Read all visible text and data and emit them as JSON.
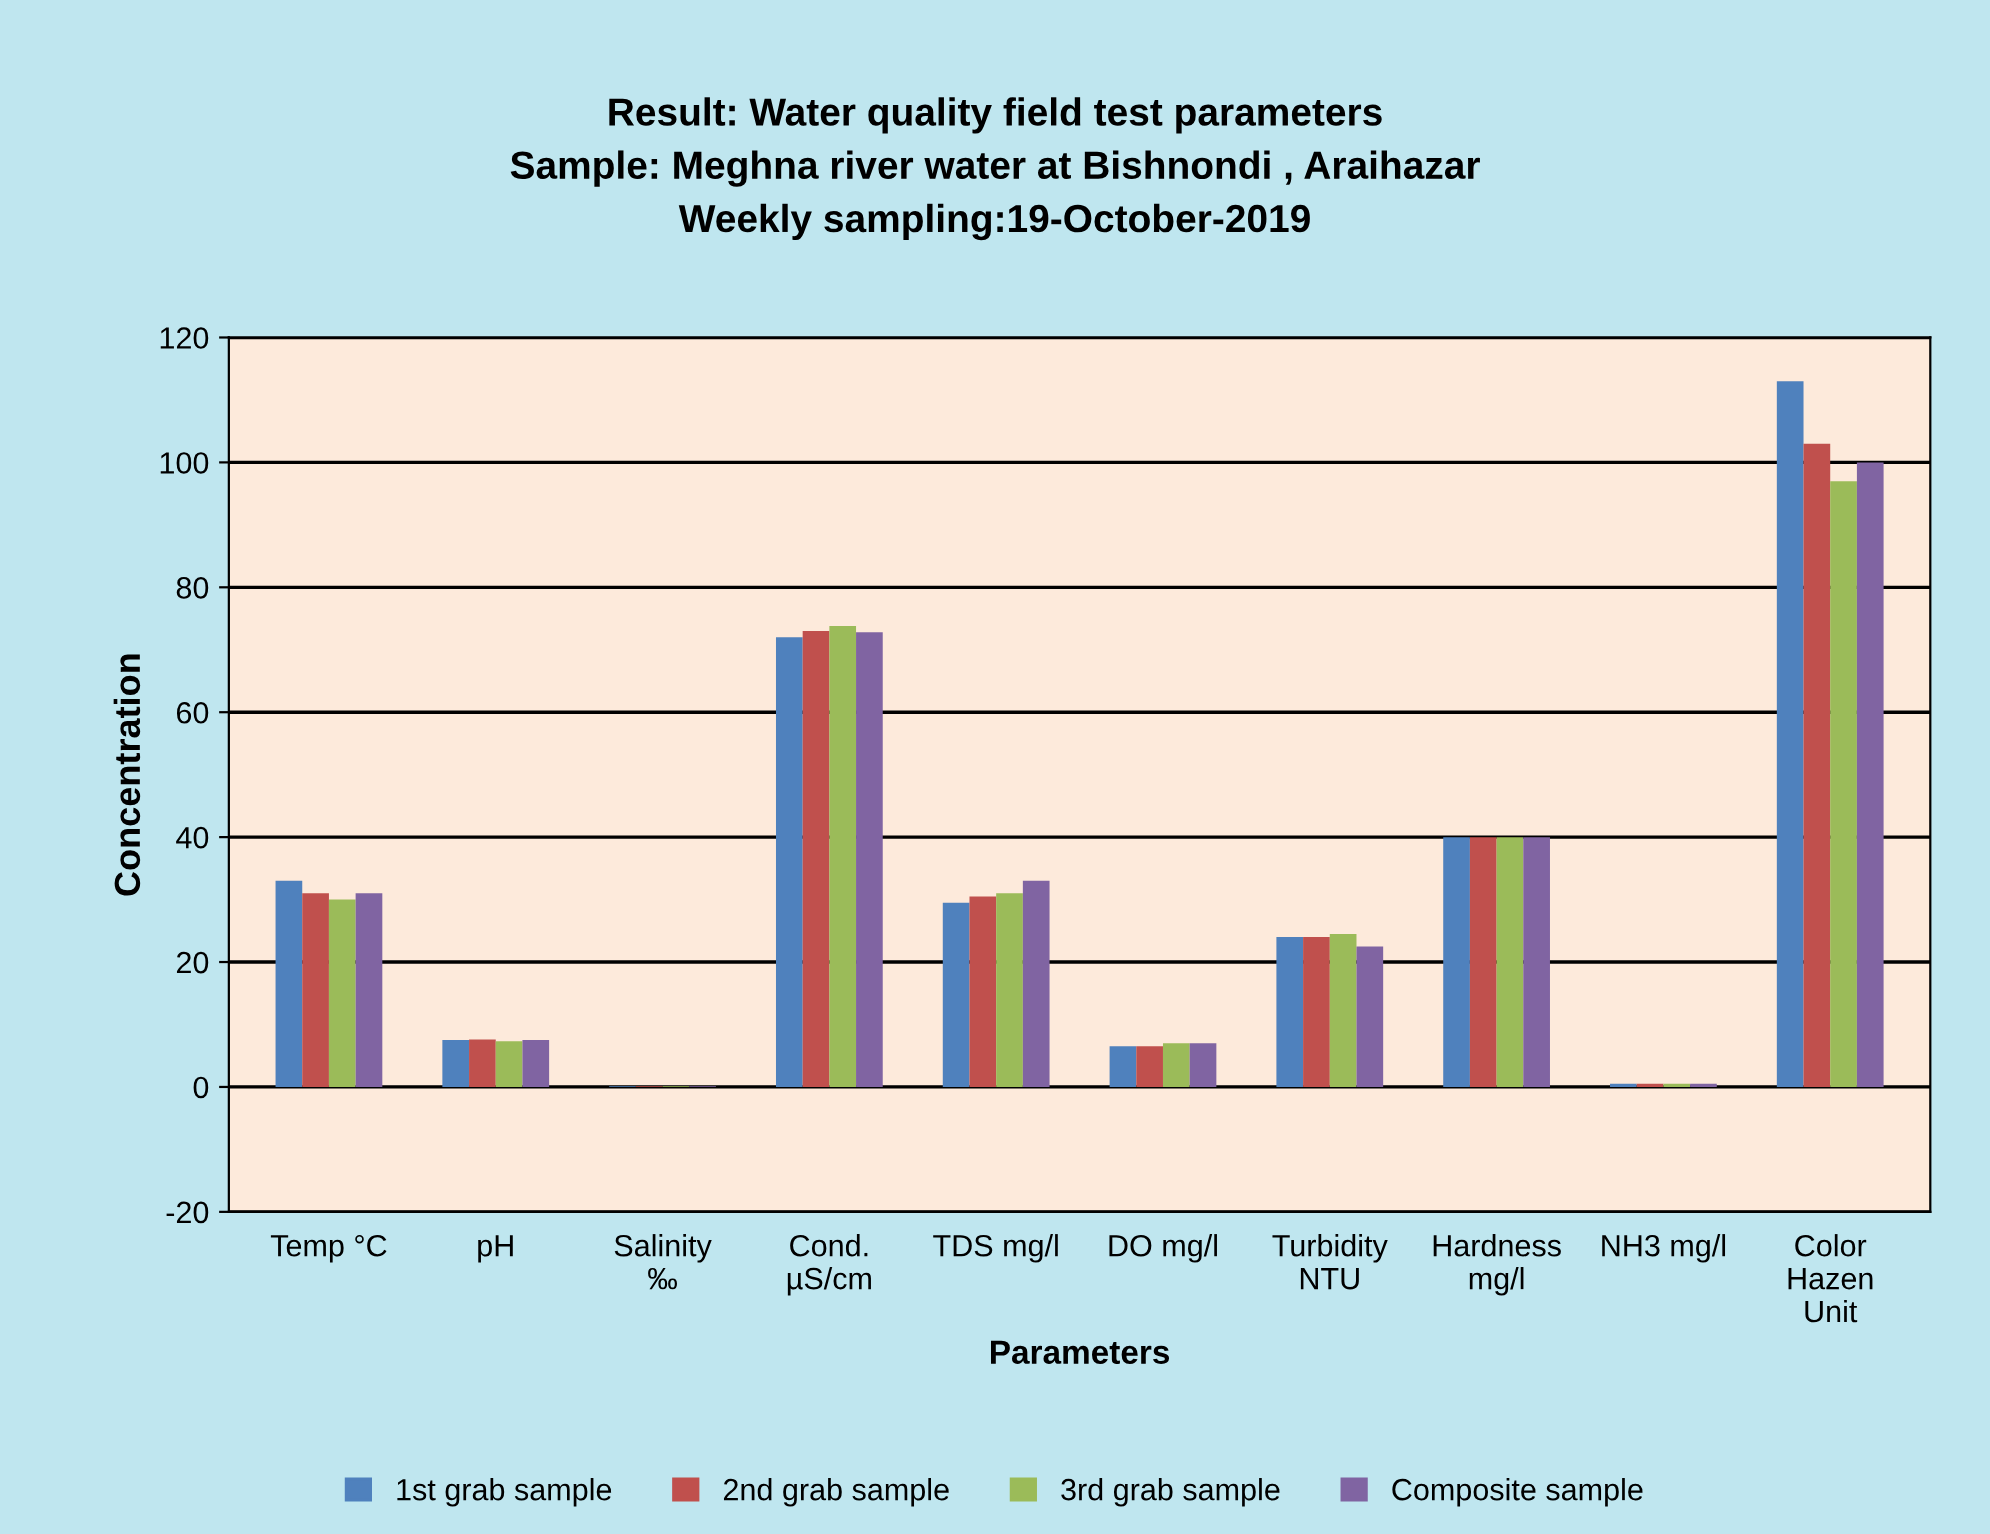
{
  "chart_data": {
    "type": "bar",
    "title": "Result: Water quality field test parameters\nSample: Meghna river water at Bishnondi , Araihazar\nWeekly sampling:19-October-2019",
    "xlabel": "Parameters",
    "ylabel": "Concentration",
    "categories": [
      "Temp °C",
      "pH",
      "Salinity\n‰",
      "Cond.\nµS/cm",
      "TDS mg/l",
      "DO mg/l",
      "Turbidity\nNTU",
      "Hardness\nmg/l",
      "NH3 mg/l",
      "Color\nHazen\nUnit"
    ],
    "series": [
      {
        "name": "1st grab sample",
        "color": "#4f81bd",
        "values": [
          33,
          7.5,
          0.1,
          72,
          29.5,
          6.5,
          24,
          40,
          0.5,
          113
        ]
      },
      {
        "name": "2nd grab sample",
        "color": "#c0504d",
        "values": [
          31,
          7.6,
          0.1,
          73,
          30.5,
          6.5,
          24,
          40,
          0.5,
          103
        ]
      },
      {
        "name": "3rd grab sample",
        "color": "#9bbb59",
        "values": [
          30,
          7.3,
          0.1,
          73.8,
          31,
          7,
          24.5,
          40,
          0.5,
          97
        ]
      },
      {
        "name": "Composite sample",
        "color": "#8064a2",
        "values": [
          31,
          7.5,
          0.1,
          72.8,
          33,
          7,
          22.5,
          40,
          0.5,
          100
        ]
      }
    ],
    "ylim": [
      -20,
      120
    ],
    "yticks": [
      -20,
      0,
      20,
      40,
      60,
      80,
      100,
      120
    ],
    "grid": "y",
    "legend": "bottom"
  }
}
